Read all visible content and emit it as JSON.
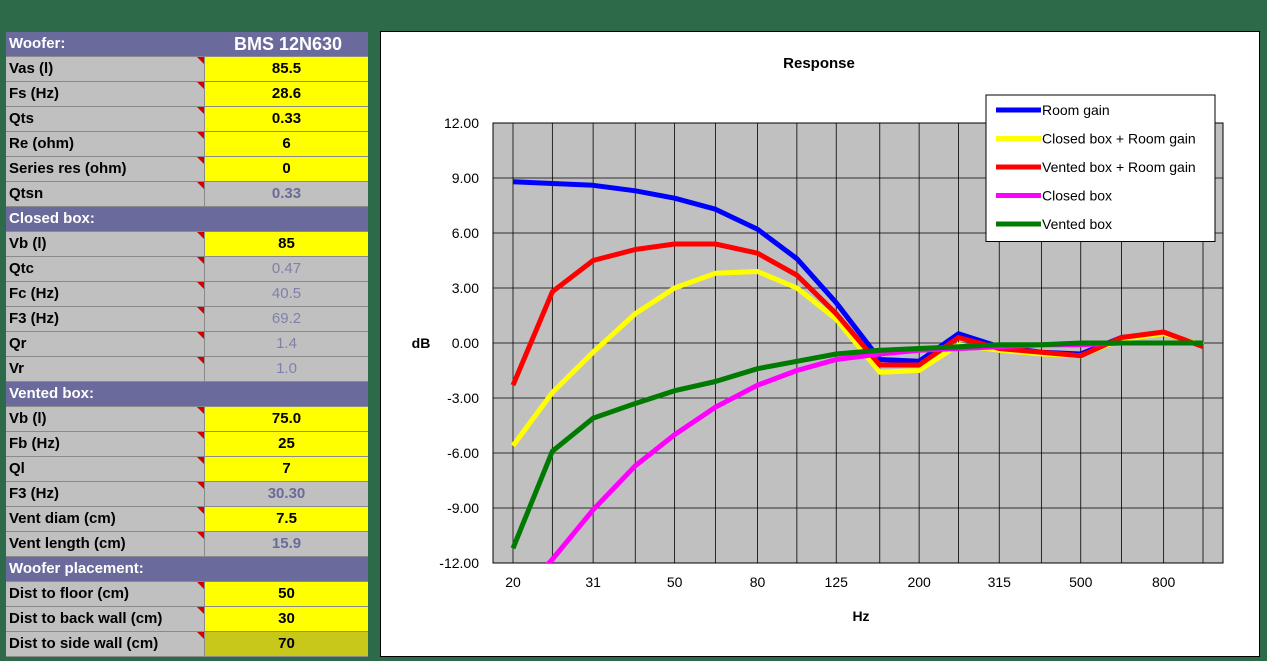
{
  "panel": {
    "rows": [
      {
        "kind": "header",
        "label": "Woofer:",
        "value": "BMS 12N630"
      },
      {
        "kind": "input",
        "label": "Vas (l)",
        "value": "85.5"
      },
      {
        "kind": "input",
        "label": "Fs (Hz)",
        "value": "28.6"
      },
      {
        "kind": "input",
        "label": "Qts",
        "value": "0.33"
      },
      {
        "kind": "input",
        "label": "Re (ohm)",
        "value": "6"
      },
      {
        "kind": "input",
        "label": "Series res (ohm)",
        "value": "0"
      },
      {
        "kind": "calc",
        "label": "Qtsn",
        "value": "0.33"
      },
      {
        "kind": "header",
        "label": "Closed box:",
        "value": ""
      },
      {
        "kind": "input",
        "label": "Vb (l)",
        "value": "85"
      },
      {
        "kind": "calc2",
        "label": "Qtc",
        "value": "0.47"
      },
      {
        "kind": "calc2",
        "label": "Fc (Hz)",
        "value": "40.5"
      },
      {
        "kind": "calc2",
        "label": "F3 (Hz)",
        "value": "69.2"
      },
      {
        "kind": "calc2",
        "label": "Qr",
        "value": "1.4"
      },
      {
        "kind": "calc2",
        "label": "Vr",
        "value": "1.0"
      },
      {
        "kind": "header",
        "label": "Vented box:",
        "value": ""
      },
      {
        "kind": "input",
        "label": "Vb (l)",
        "value": "75.0"
      },
      {
        "kind": "input",
        "label": "Fb (Hz)",
        "value": "25"
      },
      {
        "kind": "input",
        "label": "Ql",
        "value": "7"
      },
      {
        "kind": "calc",
        "label": "F3 (Hz)",
        "value": "30.30"
      },
      {
        "kind": "input",
        "label": "Vent diam (cm)",
        "value": "7.5"
      },
      {
        "kind": "calc",
        "label": "Vent length (cm)",
        "value": "15.9"
      },
      {
        "kind": "header",
        "label": "Woofer placement:",
        "value": ""
      },
      {
        "kind": "input",
        "label": "Dist to floor (cm)",
        "value": "50"
      },
      {
        "kind": "input",
        "label": "Dist to back wall (cm)",
        "value": "30"
      },
      {
        "kind": "sel",
        "label": "Dist to side wall (cm)",
        "value": "70"
      }
    ]
  },
  "chart_data": {
    "type": "line",
    "title": "Response",
    "xlabel": "Hz",
    "ylabel": "dB",
    "ylim": [
      -12,
      12
    ],
    "yticks": [
      "12.00",
      "9.00",
      "6.00",
      "3.00",
      "0.00",
      "-3.00",
      "-6.00",
      "-9.00",
      "-12.00"
    ],
    "x": [
      20,
      25,
      31.5,
      40,
      50,
      63,
      80,
      100,
      125,
      160,
      200,
      250,
      315,
      400,
      500,
      630,
      800,
      1000
    ],
    "xtick_labels": [
      "20",
      "31",
      "50",
      "80",
      "125",
      "200",
      "315",
      "500",
      "800"
    ],
    "xtick_positions": [
      20,
      31.5,
      50,
      80,
      125,
      200,
      315,
      500,
      800
    ],
    "grid": true,
    "legend_position": "top-right",
    "series": [
      {
        "name": "Room gain",
        "color": "#0000ff",
        "values": [
          8.8,
          8.7,
          8.6,
          8.3,
          7.9,
          7.3,
          6.2,
          4.6,
          2.2,
          -0.9,
          -1.0,
          0.5,
          -0.2,
          -0.5,
          -0.6,
          0.3,
          0.5,
          -0.1
        ]
      },
      {
        "name": "Closed box + Room gain",
        "color": "#ffff00",
        "values": [
          -5.6,
          -2.7,
          -0.5,
          1.6,
          3.0,
          3.8,
          3.9,
          3.0,
          1.3,
          -1.6,
          -1.5,
          -0.1,
          -0.4,
          -0.6,
          -0.7,
          0.2,
          0.5,
          -0.1
        ]
      },
      {
        "name": "Vented box + Room gain",
        "color": "#ff0000",
        "values": [
          -2.3,
          2.8,
          4.5,
          5.1,
          5.4,
          5.4,
          4.9,
          3.7,
          1.6,
          -1.2,
          -1.2,
          0.3,
          -0.3,
          -0.5,
          -0.7,
          0.3,
          0.6,
          -0.2
        ]
      },
      {
        "name": "Closed box",
        "color": "#ff00ff",
        "values": [
          -14.2,
          -11.8,
          -9.1,
          -6.7,
          -5.0,
          -3.5,
          -2.3,
          -1.5,
          -0.9,
          -0.6,
          -0.4,
          -0.3,
          -0.2,
          -0.1,
          -0.1,
          0.0,
          0.0,
          0.0
        ]
      },
      {
        "name": "Vented box",
        "color": "#007a00",
        "values": [
          -11.2,
          -5.9,
          -4.1,
          -3.3,
          -2.6,
          -2.1,
          -1.4,
          -1.0,
          -0.6,
          -0.4,
          -0.3,
          -0.2,
          -0.1,
          -0.1,
          0.0,
          0.0,
          0.0,
          0.0
        ]
      }
    ]
  }
}
